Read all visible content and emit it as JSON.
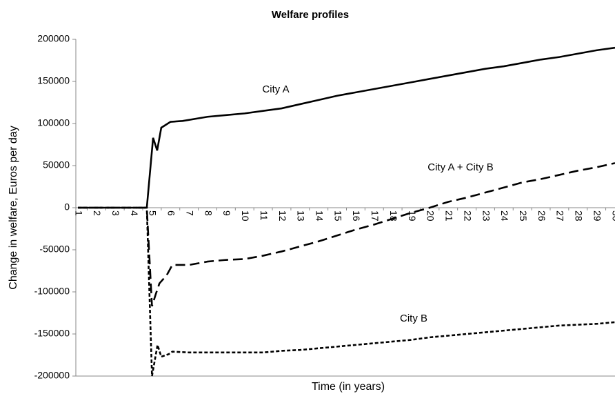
{
  "chart_data": {
    "type": "line",
    "title": "Welfare profiles",
    "x_label": "Time (in years)",
    "y_label": "Change in welfare, Euros per day",
    "xlim": [
      1,
      30
    ],
    "xticks": [
      1,
      2,
      3,
      4,
      5,
      6,
      7,
      8,
      9,
      10,
      11,
      12,
      13,
      14,
      15,
      16,
      17,
      18,
      19,
      20,
      21,
      22,
      23,
      24,
      25,
      26,
      27,
      28,
      29,
      30
    ],
    "ylim": [
      -200000,
      200000
    ],
    "yticks": [
      -200000,
      -150000,
      -100000,
      -50000,
      0,
      50000,
      100000,
      150000,
      200000
    ],
    "series": [
      {
        "name": "City A",
        "color": "#000000",
        "style": "solid",
        "x": [
          1,
          4.72,
          5.06,
          5.28,
          5.5,
          6,
          6.65,
          8,
          9,
          10,
          11,
          12,
          13,
          14,
          15,
          16,
          17,
          18,
          19,
          20,
          21,
          22,
          23,
          24,
          25,
          26,
          27,
          28,
          29,
          30
        ],
        "values": [
          0,
          0,
          83000,
          68000,
          95000,
          102000,
          103000,
          108000,
          110000,
          112000,
          115000,
          118000,
          123000,
          128000,
          133000,
          137000,
          141000,
          145000,
          149000,
          153000,
          157000,
          161000,
          165000,
          168000,
          172000,
          176000,
          179000,
          183000,
          187000,
          190000
        ]
      },
      {
        "name": "City A + City B",
        "color": "#000000",
        "style": "dashed",
        "x": [
          1,
          4.72,
          5.0,
          5.2,
          5.4,
          5.8,
          6.1,
          7,
          8,
          9,
          10,
          11,
          12,
          13,
          14,
          15,
          16,
          17,
          18,
          19,
          20,
          21,
          22,
          23,
          24,
          25,
          26,
          27,
          28,
          29,
          30
        ],
        "values": [
          0,
          0,
          -117000,
          -103000,
          -90000,
          -80000,
          -68000,
          -68000,
          -64000,
          -62000,
          -61000,
          -57000,
          -52000,
          -46000,
          -40000,
          -33000,
          -26000,
          -20000,
          -13000,
          -6000,
          0,
          7000,
          12000,
          18000,
          24000,
          30000,
          34000,
          39000,
          44000,
          48000,
          53000
        ]
      },
      {
        "name": "City B",
        "color": "#000000",
        "style": "dotted",
        "x": [
          1,
          4.72,
          5.0,
          5.3,
          5.5,
          5.9,
          6.1,
          7,
          8,
          9,
          10,
          11,
          12,
          13,
          14,
          15,
          16,
          17,
          18,
          19,
          20,
          21,
          22,
          23,
          24,
          25,
          26,
          27,
          28,
          29,
          30
        ],
        "values": [
          0,
          0,
          -200000,
          -163000,
          -177000,
          -174000,
          -171000,
          -172000,
          -172000,
          -172000,
          -172000,
          -172000,
          -170000,
          -169000,
          -167000,
          -165000,
          -163000,
          -161000,
          -159000,
          -157000,
          -154000,
          -152000,
          -150000,
          -148000,
          -146000,
          -144000,
          -142000,
          -140000,
          -139000,
          -138000,
          -136000
        ]
      }
    ]
  }
}
